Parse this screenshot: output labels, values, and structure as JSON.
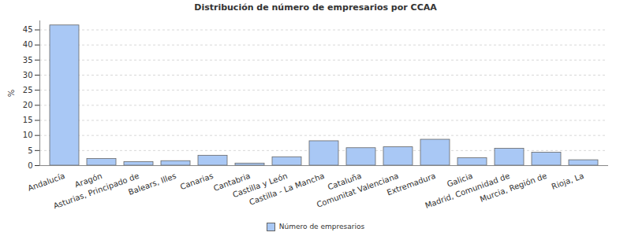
{
  "chart_data": {
    "type": "bar",
    "title": "Distribución de número de empresarios por CCAA",
    "y_label": "%",
    "categories": [
      "Andalucía",
      "Aragón",
      "Asturias, Principado de",
      "Balears, Illes",
      "Canarias",
      "Cantabria",
      "Castilla y León",
      "Castilla - La Mancha",
      "Cataluña",
      "Comunitat Valenciana",
      "Extremadura",
      "Galicia",
      "Madrid, Comunidad de",
      "Murcia, Región de",
      "Rioja, La"
    ],
    "series": [
      {
        "name": "Número de empresarios",
        "color": "#a9c8f5",
        "values": [
          46.5,
          2.2,
          1.2,
          1.5,
          3.3,
          0.7,
          2.8,
          8.1,
          5.8,
          6.1,
          8.6,
          2.5,
          5.6,
          4.3,
          1.8
        ]
      }
    ],
    "ylim": [
      0,
      48
    ],
    "yticks": [
      0,
      5,
      10,
      15,
      20,
      25,
      30,
      35,
      40,
      45
    ],
    "grid": true,
    "legend": "bottom"
  }
}
